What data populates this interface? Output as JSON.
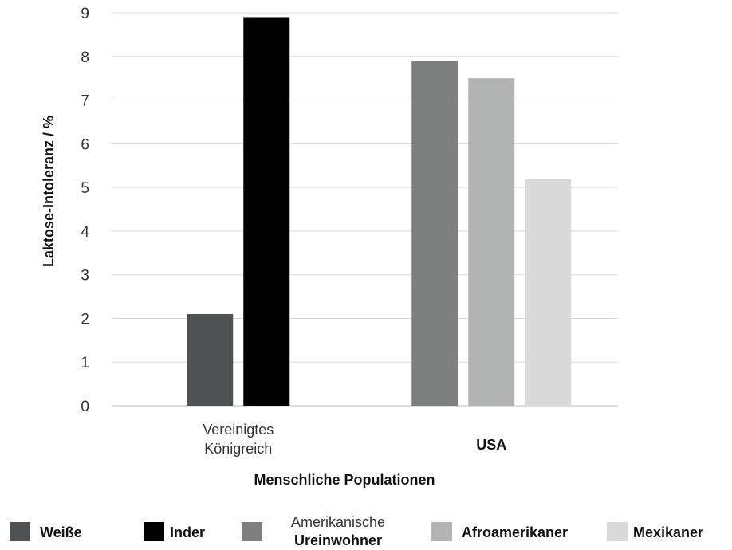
{
  "chart_data": {
    "type": "bar",
    "title": "",
    "xlabel": "Menschliche Populationen",
    "ylabel": "Laktose-Intoleranz / %",
    "ylim": [
      0,
      9
    ],
    "yticks": [
      "0",
      "1",
      "2",
      "3",
      "4",
      "5",
      "6",
      "7",
      "8",
      "9"
    ],
    "grid": true,
    "legend_position": "bottom",
    "groups": [
      {
        "label_lines": [
          "Vereinigtes",
          "Königreich"
        ],
        "bars": [
          {
            "series": "Weiße",
            "value": 2.1
          },
          {
            "series": "Inder",
            "value": 8.9
          }
        ]
      },
      {
        "label_lines": [
          "USA"
        ],
        "bars": [
          {
            "series": "Amerikanische Ureinwohner",
            "value": 7.9
          },
          {
            "series": "Afroamerikaner",
            "value": 7.5
          },
          {
            "series": "Mexikaner",
            "value": 5.2
          }
        ]
      }
    ],
    "legend": [
      {
        "lines": [
          "Weiße"
        ],
        "color": "#4f5252"
      },
      {
        "lines": [
          "Inder"
        ],
        "color": "#000000"
      },
      {
        "lines": [
          "Amerikanische",
          "Ureinwohner"
        ],
        "color": "#7d807f"
      },
      {
        "lines": [
          "Afroamerikaner"
        ],
        "color": "#b2b4b3"
      },
      {
        "lines": [
          "Mexikaner"
        ],
        "color": "#dadada"
      }
    ]
  }
}
